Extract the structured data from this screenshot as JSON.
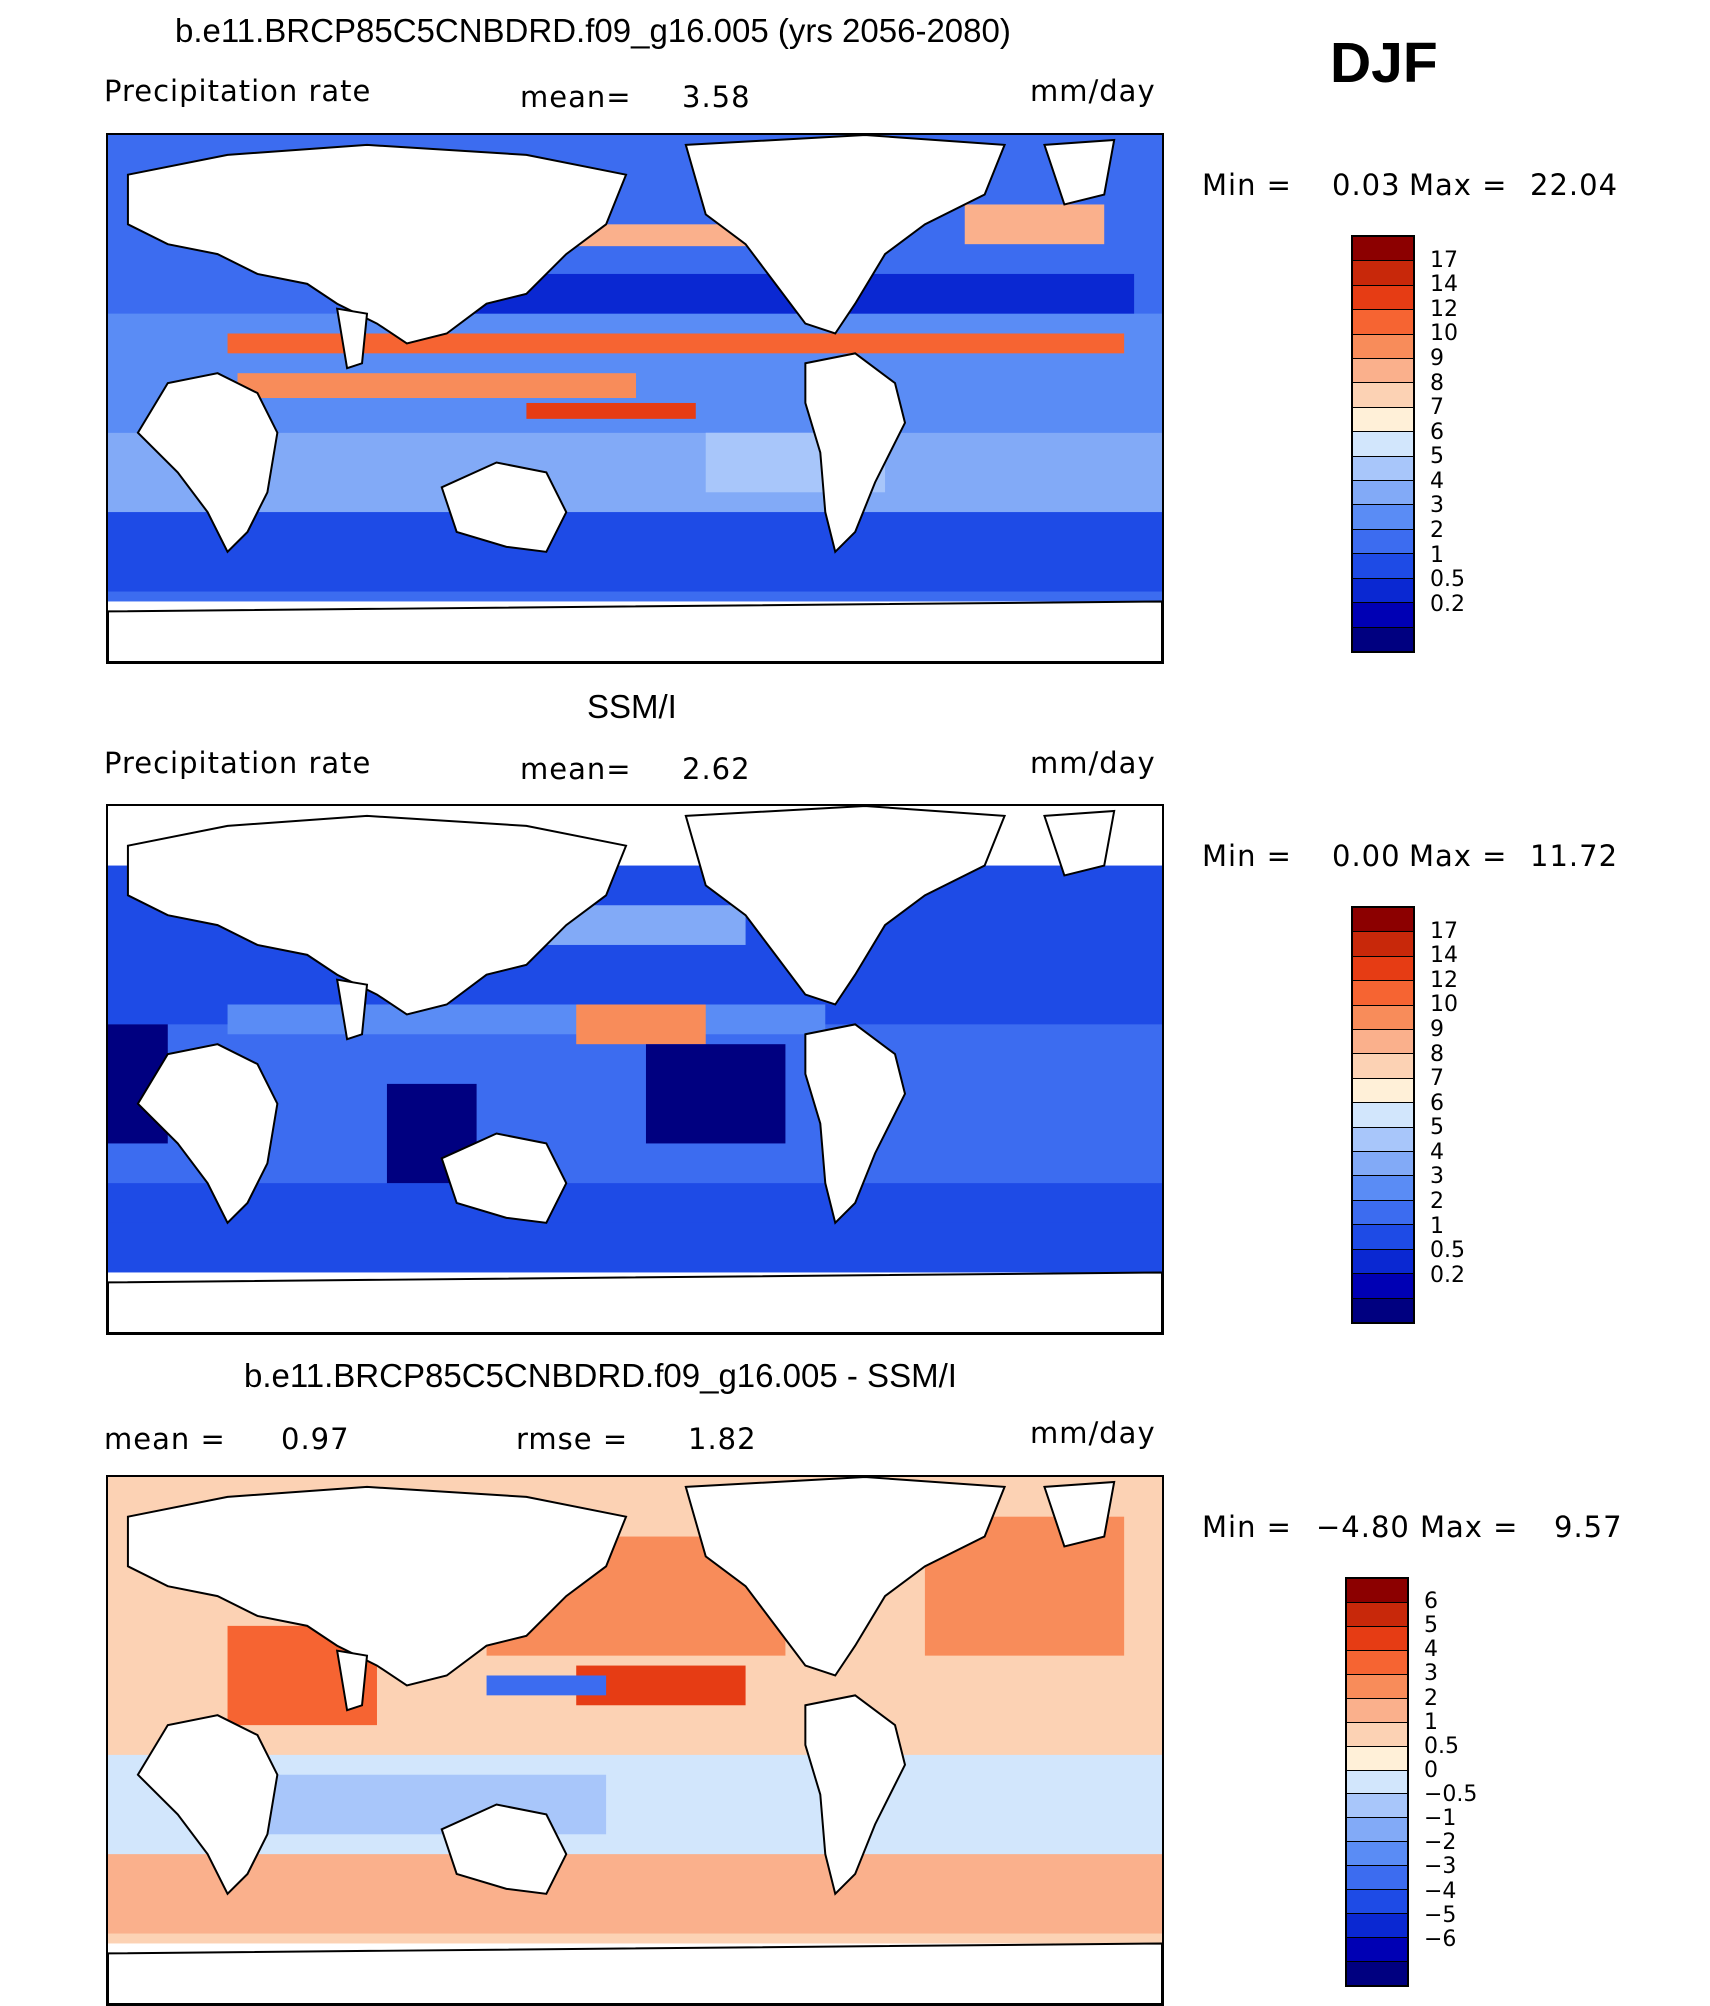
{
  "season": "DJF",
  "palettes": {
    "precip": [
      "#000080",
      "#0000b4",
      "#0a28d2",
      "#1e4be6",
      "#3c6cf0",
      "#5a8cf5",
      "#82aaf7",
      "#a8c6fa",
      "#d2e6fc",
      "#fff0d8",
      "#fcd2b4",
      "#fab08c",
      "#f88c5a",
      "#f66432",
      "#e63c14",
      "#c8280a",
      "#8c0000"
    ],
    "diff": [
      "#000080",
      "#0000b4",
      "#0a28d2",
      "#1e4be6",
      "#3c6cf0",
      "#5a8cf5",
      "#82aaf7",
      "#a8c6fa",
      "#d2e6fc",
      "#fff0d8",
      "#fcd2b4",
      "#fab08c",
      "#f88c5a",
      "#f66432",
      "#e63c14",
      "#c8280a",
      "#8c0000"
    ]
  },
  "panels": [
    {
      "title": "b.e11.BRCP85C5CNBDRD.f09_g16.005 (yrs 2056-2080)",
      "left_label": "Precipitation  rate",
      "mean_label": "mean=",
      "mean_value": "3.58",
      "units": "mm/day",
      "min_label": "Min  =",
      "min_value": "0.03",
      "max_label": "Max  =",
      "max_value": "22.04",
      "colorbar_labels": [
        "17",
        "14",
        "12",
        "10",
        "9",
        "8",
        "7",
        "6",
        "5",
        "4",
        "3",
        "2",
        "1",
        "0.5",
        "0.2"
      ],
      "field": "model"
    },
    {
      "title": "SSM/I",
      "left_label": "Precipitation  rate",
      "mean_label": "mean=",
      "mean_value": "2.62",
      "units": "mm/day",
      "min_label": "Min  =",
      "min_value": "0.00",
      "max_label": "Max  =",
      "max_value": "11.72",
      "colorbar_labels": [
        "17",
        "14",
        "12",
        "10",
        "9",
        "8",
        "7",
        "6",
        "5",
        "4",
        "3",
        "2",
        "1",
        "0.5",
        "0.2"
      ],
      "field": "obs"
    },
    {
      "title": "b.e11.BRCP85C5CNBDRD.f09_g16.005 - SSM/I",
      "left_label": "mean  =",
      "left_value": "0.97",
      "mean_label": "rmse  =",
      "mean_value": "1.82",
      "units": "mm/day",
      "min_label": "Min  =",
      "min_value": "−4.80",
      "max_label": "Max  =",
      "max_value": "9.57",
      "colorbar_labels": [
        "6",
        "5",
        "4",
        "3",
        "2",
        "1",
        "0.5",
        "0",
        "−0.5",
        "−1",
        "−2",
        "−3",
        "−4",
        "−5",
        "−6"
      ],
      "field": "diff"
    }
  ]
}
